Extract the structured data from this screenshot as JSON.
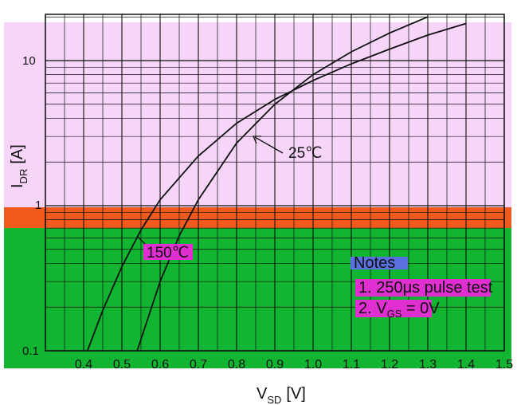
{
  "chart_data": {
    "type": "line",
    "title": "",
    "xlabel": {
      "main": "V",
      "sub": "SD",
      "unit": "[V]"
    },
    "ylabel": {
      "main": "I",
      "sub": "DR",
      "unit": "[A]"
    },
    "x_ticks": [
      "0.4",
      "0.5",
      "0.6",
      "0.7",
      "0.8",
      "0.9",
      "1.0",
      "1.1",
      "1.2",
      "1.3",
      "1.4",
      "1.5"
    ],
    "y_ticks": [
      "0.1",
      "1",
      "10"
    ],
    "xlim": [
      0.3,
      1.5
    ],
    "ylim": [
      0.1,
      20
    ],
    "y_scale": "log",
    "grid": true,
    "series": [
      {
        "name": "150°C",
        "x": [
          0.41,
          0.45,
          0.5,
          0.55,
          0.6,
          0.7,
          0.8,
          0.9,
          1.0,
          1.1,
          1.2,
          1.3,
          1.4
        ],
        "y": [
          0.1,
          0.19,
          0.38,
          0.68,
          1.1,
          2.2,
          3.7,
          5.4,
          7.3,
          9.5,
          12,
          15,
          18
        ]
      },
      {
        "name": "25°C",
        "x": [
          0.54,
          0.6,
          0.65,
          0.7,
          0.8,
          0.9,
          1.0,
          1.1,
          1.2,
          1.3
        ],
        "y": [
          0.1,
          0.3,
          0.62,
          1.1,
          2.7,
          5.0,
          8.0,
          11.5,
          15.5,
          20
        ]
      }
    ],
    "annotations": [
      {
        "text": "25℃",
        "target_series": "25°C"
      },
      {
        "text": "150℃",
        "target_series": "150°C"
      }
    ],
    "notes": [
      "Notes",
      "1. 250μs pulse test",
      "2. V",
      "GS",
      " = 0V"
    ],
    "colors": {
      "top_band": "#f7d5f9",
      "mid_band": "#f05a1c",
      "bottom_band": "#12b531",
      "line": "#111111"
    }
  }
}
